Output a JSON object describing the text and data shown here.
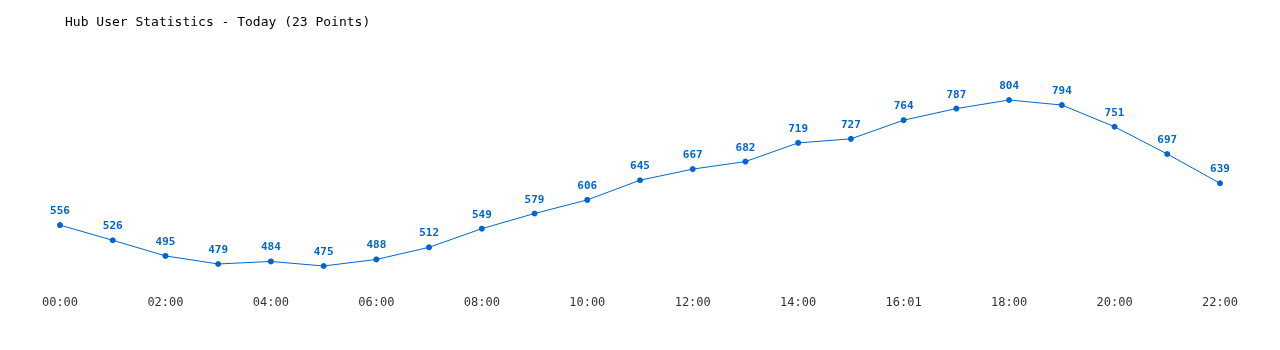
{
  "chart_data": {
    "type": "line",
    "title": "Hub User Statistics - Today (23 Points)",
    "categories": [
      "00:00",
      null,
      "02:00",
      null,
      "04:00",
      null,
      "06:00",
      null,
      "08:00",
      null,
      "10:00",
      null,
      "12:00",
      null,
      "14:00",
      null,
      "16:01",
      null,
      "18:00",
      null,
      "20:00",
      null,
      "22:00"
    ],
    "series": [
      {
        "color": "#0066cc",
        "values": [
          556,
          526,
          495,
          479,
          484,
          475,
          488,
          512,
          549,
          579,
          606,
          645,
          667,
          682,
          719,
          727,
          764,
          787,
          804,
          794,
          751,
          697,
          639
        ]
      }
    ],
    "data_labels": true,
    "marker": "circle",
    "line_style": "solid",
    "grid": false
  }
}
